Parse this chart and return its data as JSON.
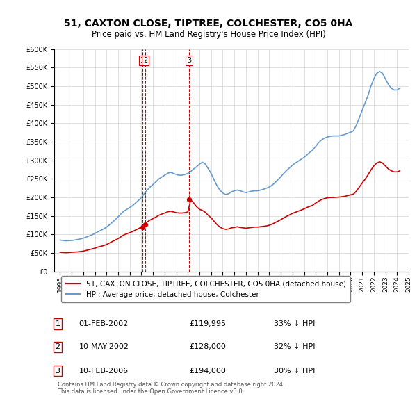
{
  "title": "51, CAXTON CLOSE, TIPTREE, COLCHESTER, CO5 0HA",
  "subtitle": "Price paid vs. HM Land Registry's House Price Index (HPI)",
  "hpi_label": "HPI: Average price, detached house, Colchester",
  "property_label": "51, CAXTON CLOSE, TIPTREE, COLCHESTER, CO5 0HA (detached house)",
  "hpi_color": "#6699cc",
  "property_color": "#cc0000",
  "vline_color": "#cc0000",
  "footer": "Contains HM Land Registry data © Crown copyright and database right 2024.\nThis data is licensed under the Open Government Licence v3.0.",
  "transactions": [
    {
      "label": "1",
      "date": "01-FEB-2002",
      "price": "£119,995",
      "hpi": "33% ↓ HPI",
      "x": 2002.083
    },
    {
      "label": "2",
      "date": "10-MAY-2002",
      "price": "£128,000",
      "hpi": "32% ↓ HPI",
      "x": 2002.36
    },
    {
      "label": "3",
      "date": "10-FEB-2006",
      "price": "£194,000",
      "hpi": "30% ↓ HPI",
      "x": 2006.11
    }
  ],
  "hpi_x": [
    1995.0,
    1995.25,
    1995.5,
    1995.75,
    1996.0,
    1996.25,
    1996.5,
    1996.75,
    1997.0,
    1997.25,
    1997.5,
    1997.75,
    1998.0,
    1998.25,
    1998.5,
    1998.75,
    1999.0,
    1999.25,
    1999.5,
    1999.75,
    2000.0,
    2000.25,
    2000.5,
    2000.75,
    2001.0,
    2001.25,
    2001.5,
    2001.75,
    2002.0,
    2002.25,
    2002.5,
    2002.75,
    2003.0,
    2003.25,
    2003.5,
    2003.75,
    2004.0,
    2004.25,
    2004.5,
    2004.75,
    2005.0,
    2005.25,
    2005.5,
    2005.75,
    2006.0,
    2006.25,
    2006.5,
    2006.75,
    2007.0,
    2007.25,
    2007.5,
    2007.75,
    2008.0,
    2008.25,
    2008.5,
    2008.75,
    2009.0,
    2009.25,
    2009.5,
    2009.75,
    2010.0,
    2010.25,
    2010.5,
    2010.75,
    2011.0,
    2011.25,
    2011.5,
    2011.75,
    2012.0,
    2012.25,
    2012.5,
    2012.75,
    2013.0,
    2013.25,
    2013.5,
    2013.75,
    2014.0,
    2014.25,
    2014.5,
    2014.75,
    2015.0,
    2015.25,
    2015.5,
    2015.75,
    2016.0,
    2016.25,
    2016.5,
    2016.75,
    2017.0,
    2017.25,
    2017.5,
    2017.75,
    2018.0,
    2018.25,
    2018.5,
    2018.75,
    2019.0,
    2019.25,
    2019.5,
    2019.75,
    2020.0,
    2020.25,
    2020.5,
    2020.75,
    2021.0,
    2021.25,
    2021.5,
    2021.75,
    2022.0,
    2022.25,
    2022.5,
    2022.75,
    2023.0,
    2023.25,
    2023.5,
    2023.75,
    2024.0,
    2024.25
  ],
  "hpi_y": [
    85000,
    84000,
    83000,
    83500,
    84000,
    85000,
    86500,
    88000,
    90000,
    93000,
    96000,
    99000,
    103000,
    107000,
    111000,
    115000,
    120000,
    126000,
    133000,
    140000,
    148000,
    156000,
    163000,
    168000,
    173000,
    178000,
    185000,
    192000,
    200000,
    210000,
    220000,
    228000,
    235000,
    242000,
    250000,
    255000,
    260000,
    265000,
    268000,
    265000,
    262000,
    260000,
    260000,
    262000,
    265000,
    270000,
    277000,
    283000,
    290000,
    295000,
    290000,
    278000,
    265000,
    248000,
    232000,
    220000,
    212000,
    208000,
    210000,
    215000,
    218000,
    220000,
    218000,
    215000,
    213000,
    215000,
    217000,
    218000,
    218000,
    220000,
    222000,
    225000,
    228000,
    233000,
    240000,
    248000,
    256000,
    265000,
    273000,
    280000,
    287000,
    293000,
    298000,
    303000,
    308000,
    315000,
    322000,
    328000,
    338000,
    348000,
    355000,
    360000,
    363000,
    365000,
    366000,
    366000,
    366000,
    368000,
    370000,
    373000,
    376000,
    380000,
    395000,
    415000,
    435000,
    455000,
    475000,
    500000,
    520000,
    535000,
    540000,
    535000,
    520000,
    505000,
    495000,
    490000,
    490000,
    495000
  ],
  "prop_x": [
    1995.0,
    1995.25,
    1995.5,
    1995.75,
    1996.0,
    1996.25,
    1996.5,
    1996.75,
    1997.0,
    1997.25,
    1997.5,
    1997.75,
    1998.0,
    1998.25,
    1998.5,
    1998.75,
    1999.0,
    1999.25,
    1999.5,
    1999.75,
    2000.0,
    2000.25,
    2000.5,
    2000.75,
    2001.0,
    2001.25,
    2001.5,
    2001.75,
    2002.0,
    2002.25,
    2002.5,
    2002.75,
    2003.0,
    2003.25,
    2003.5,
    2003.75,
    2004.0,
    2004.25,
    2004.5,
    2004.75,
    2005.0,
    2005.25,
    2005.5,
    2005.75,
    2006.0,
    2006.25,
    2006.5,
    2006.75,
    2007.0,
    2007.25,
    2007.5,
    2007.75,
    2008.0,
    2008.25,
    2008.5,
    2008.75,
    2009.0,
    2009.25,
    2009.5,
    2009.75,
    2010.0,
    2010.25,
    2010.5,
    2010.75,
    2011.0,
    2011.25,
    2011.5,
    2011.75,
    2012.0,
    2012.25,
    2012.5,
    2012.75,
    2013.0,
    2013.25,
    2013.5,
    2013.75,
    2014.0,
    2014.25,
    2014.5,
    2014.75,
    2015.0,
    2015.25,
    2015.5,
    2015.75,
    2016.0,
    2016.25,
    2016.5,
    2016.75,
    2017.0,
    2017.25,
    2017.5,
    2017.75,
    2018.0,
    2018.25,
    2018.5,
    2018.75,
    2019.0,
    2019.25,
    2019.5,
    2019.75,
    2020.0,
    2020.25,
    2020.5,
    2020.75,
    2021.0,
    2021.25,
    2021.5,
    2021.75,
    2022.0,
    2022.25,
    2022.5,
    2022.75,
    2023.0,
    2023.25,
    2023.5,
    2023.75,
    2024.0,
    2024.25
  ],
  "prop_y": [
    52000,
    51500,
    51000,
    51500,
    52000,
    52500,
    53000,
    54000,
    55000,
    57000,
    59000,
    61000,
    63000,
    66000,
    68000,
    70000,
    73000,
    77000,
    81000,
    85000,
    89000,
    94000,
    99000,
    102000,
    105000,
    108000,
    112000,
    116000,
    120000,
    128000,
    134000,
    139000,
    143000,
    147000,
    152000,
    155000,
    158000,
    161000,
    163000,
    161000,
    159000,
    158000,
    158000,
    159000,
    161000,
    194000,
    185000,
    175000,
    168000,
    165000,
    160000,
    152000,
    145000,
    136000,
    127000,
    120000,
    116000,
    114000,
    115000,
    118000,
    119000,
    121000,
    119000,
    118000,
    117000,
    118000,
    119000,
    120000,
    120000,
    121000,
    122000,
    123000,
    125000,
    128000,
    132000,
    136000,
    140000,
    145000,
    149000,
    153000,
    157000,
    160000,
    163000,
    166000,
    169000,
    173000,
    176000,
    179000,
    185000,
    190000,
    194000,
    197000,
    199000,
    200000,
    200000,
    200500,
    201000,
    202000,
    203000,
    205000,
    207000,
    209000,
    217000,
    228000,
    239000,
    249000,
    261000,
    274000,
    285000,
    293000,
    296000,
    293000,
    285000,
    277000,
    272000,
    269000,
    269000,
    272000
  ],
  "ylim": [
    0,
    600000
  ],
  "yticks": [
    0,
    50000,
    100000,
    150000,
    200000,
    250000,
    300000,
    350000,
    400000,
    450000,
    500000,
    550000,
    600000
  ],
  "xlim": [
    1994.5,
    2025.0
  ],
  "xticks": [
    1995,
    1996,
    1997,
    1998,
    1999,
    2000,
    2001,
    2002,
    2003,
    2004,
    2005,
    2006,
    2007,
    2008,
    2009,
    2010,
    2011,
    2012,
    2013,
    2014,
    2015,
    2016,
    2017,
    2018,
    2019,
    2020,
    2021,
    2022,
    2023,
    2024,
    2025
  ]
}
